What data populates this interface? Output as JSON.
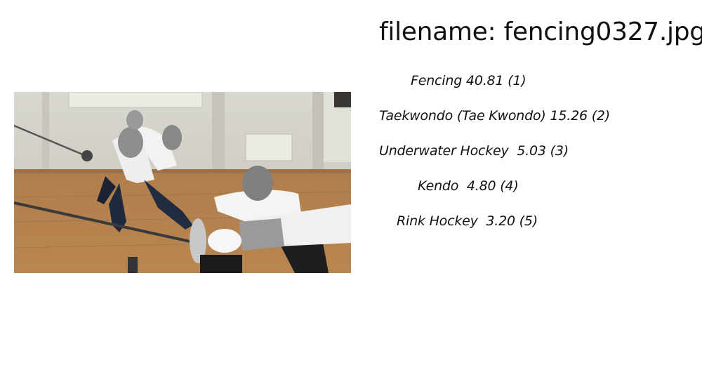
{
  "filename_label": "filename: fencing0327.jpg",
  "predictions": [
    {
      "text": "Fencing 40.81 (1)"
    },
    {
      "text": "Taekwondo (Tae Kwondo) 15.26 (2)"
    },
    {
      "text": "Underwater Hockey  5.03 (3)"
    },
    {
      "text": "Kendo  4.80 (4)"
    },
    {
      "text": "Rink Hockey  3.20 (5)"
    }
  ]
}
